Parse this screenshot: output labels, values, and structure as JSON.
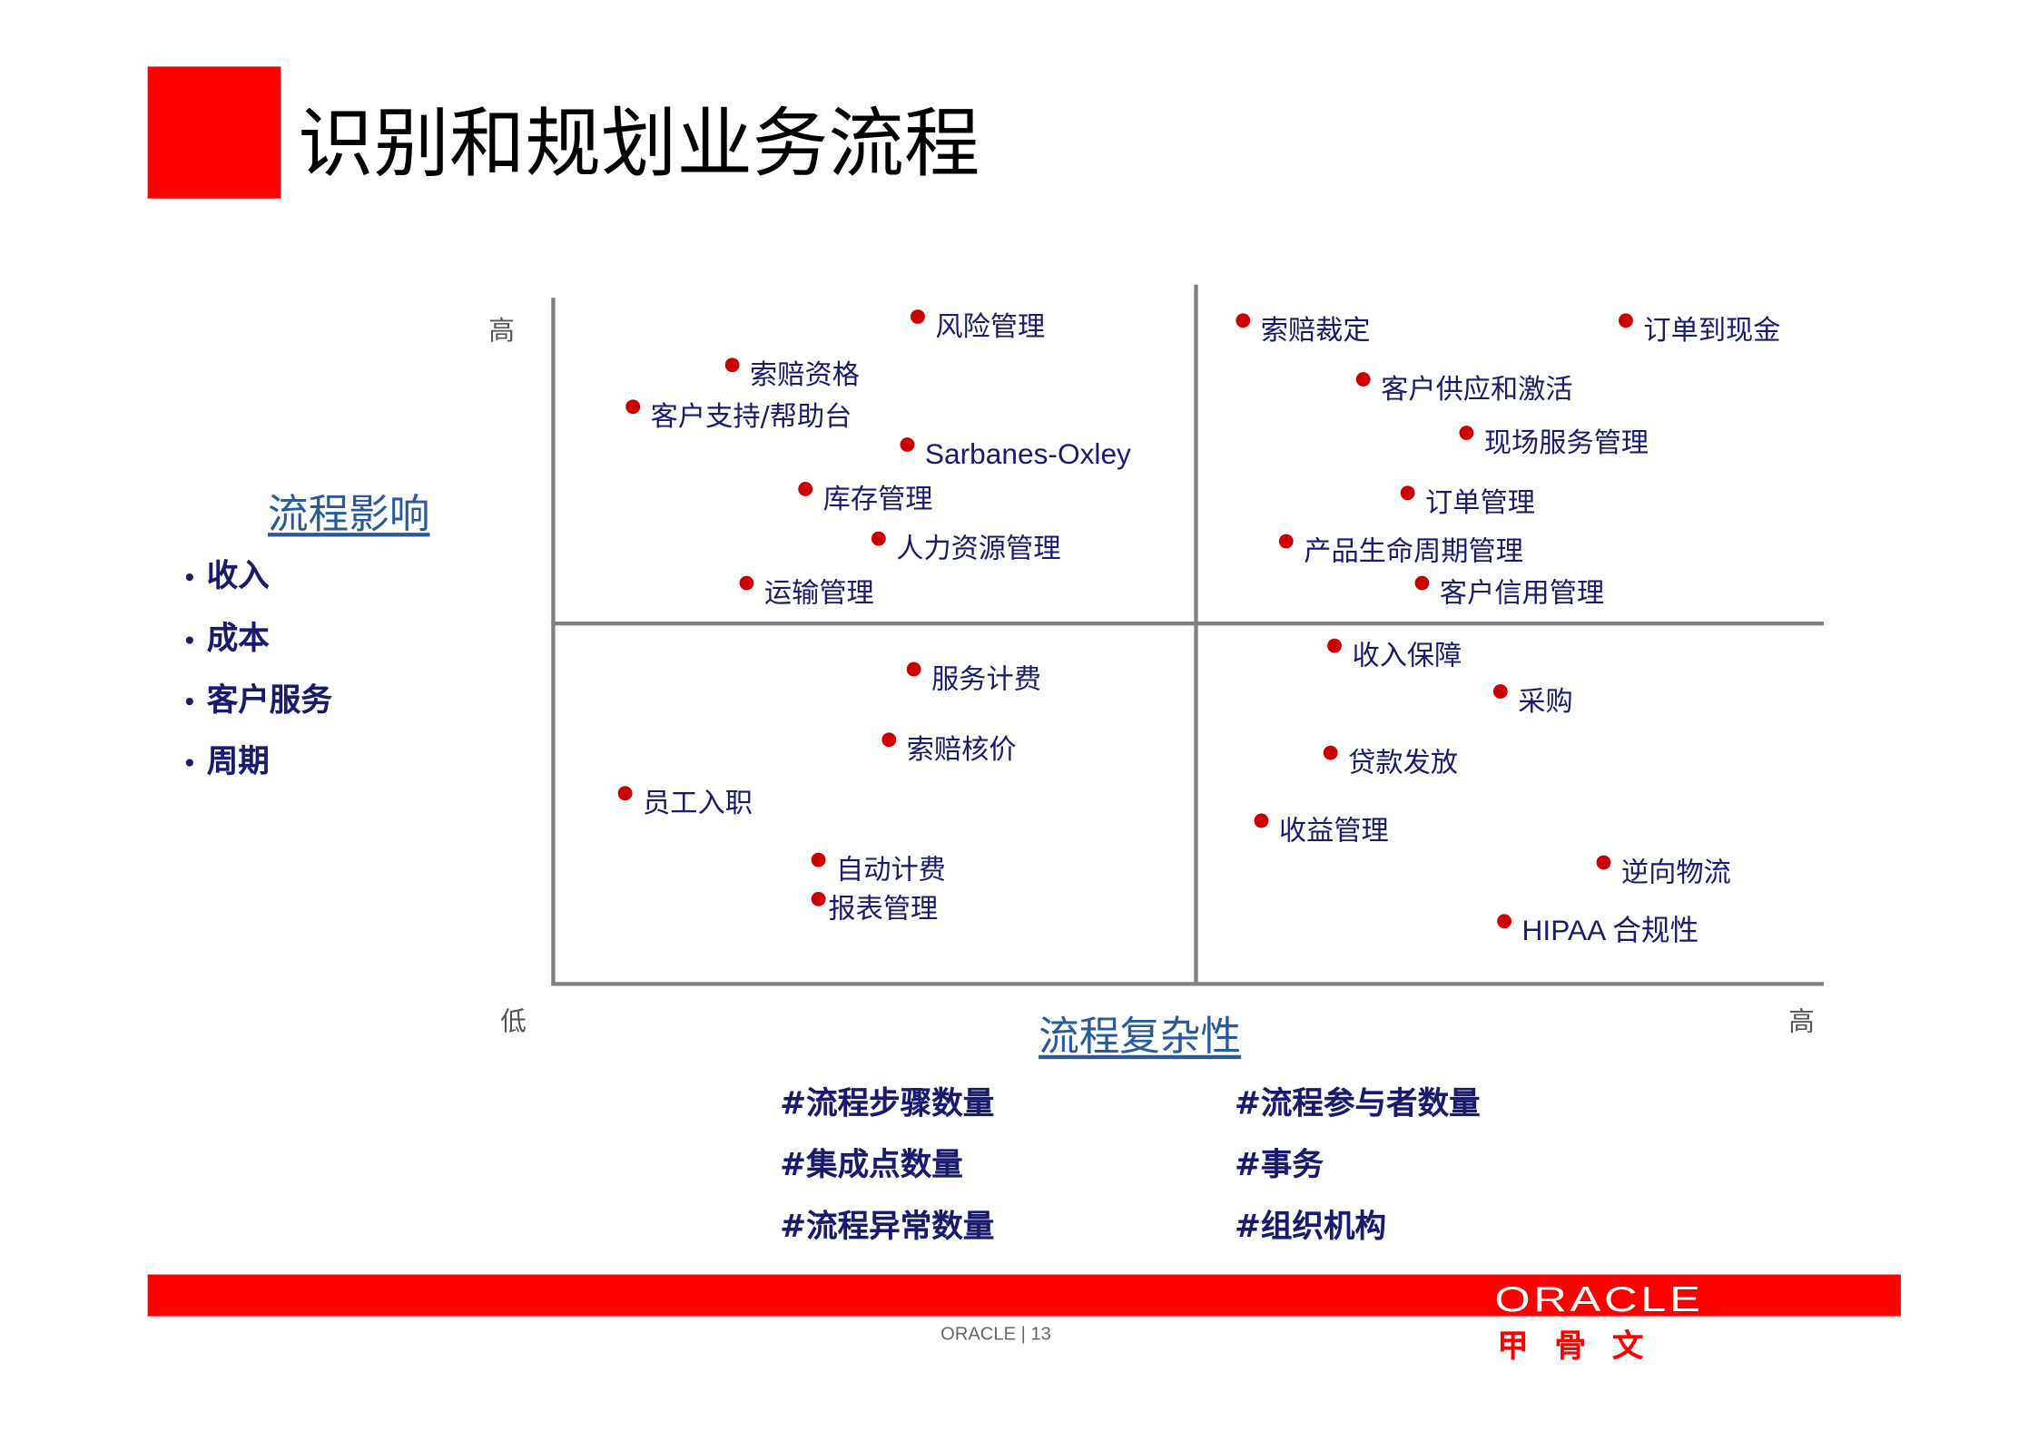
{
  "title": "识别和规划业务流程",
  "y_axis": {
    "title": "流程影响",
    "high": "高",
    "low": "低",
    "factors": [
      "收入",
      "成本",
      "客户服务",
      "周期"
    ]
  },
  "x_axis": {
    "title": "流程复杂性",
    "high": "高",
    "factors_left": [
      "#流程步骤数量",
      "#集成点数量",
      "#流程异常数量"
    ],
    "factors_right": [
      "#流程参与者数量",
      "#事务",
      "#组织机构"
    ]
  },
  "quadrants": {
    "high_impact_low_complexity": [
      "风险管理",
      "索赔资格",
      "客户支持/帮助台",
      "Sarbanes-Oxley",
      "库存管理",
      "人力资源管理",
      "运输管理"
    ],
    "high_impact_high_complexity": [
      "索赔裁定",
      "订单到现金",
      "客户供应和激活",
      "现场服务管理",
      "订单管理",
      "产品生命周期管理",
      "客户信用管理"
    ],
    "low_impact_low_complexity": [
      "服务计费",
      "索赔核价",
      "员工入职",
      "自动计费",
      "报表管理"
    ],
    "low_impact_high_complexity": [
      "收入保障",
      "采购",
      "贷款发放",
      "收益管理",
      "逆向物流",
      "HIPAA 合规性"
    ]
  },
  "colors": {
    "accent": "#ff0000",
    "dot": "#cc0000",
    "text": "#1a1a6e",
    "axis": "#808080"
  },
  "footer": {
    "brand": "ORACLE",
    "separator": "|",
    "page": "13",
    "logo_text": "ORACLE",
    "logo_cn": "甲骨文"
  }
}
